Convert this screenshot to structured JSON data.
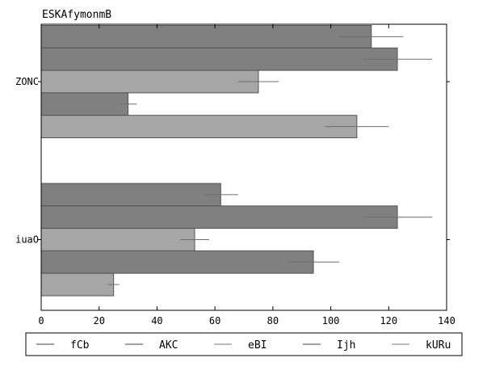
{
  "chart_data": {
    "type": "bar",
    "orientation": "horizontal",
    "title": "ESKAfymonmB",
    "xlabel": "",
    "ylabel": "",
    "xlim": [
      0,
      140
    ],
    "x_ticks": [
      0,
      20,
      40,
      60,
      80,
      100,
      120,
      140
    ],
    "categories": [
      "ZONC",
      "iuaO"
    ],
    "grid": false,
    "legend_position": "bottom",
    "series": [
      {
        "name": "fCb",
        "color": "#808080",
        "values": [
          114,
          62
        ],
        "errors": [
          11,
          6
        ]
      },
      {
        "name": "AKC",
        "color": "#808080",
        "values": [
          123,
          123
        ],
        "errors": [
          12,
          12
        ]
      },
      {
        "name": "eBI",
        "color": "#a6a6a6",
        "values": [
          75,
          53
        ],
        "errors": [
          7,
          5
        ]
      },
      {
        "name": "Ijh",
        "color": "#808080",
        "values": [
          30,
          94
        ],
        "errors": [
          3,
          9
        ]
      },
      {
        "name": "kURu",
        "color": "#a6a6a6",
        "values": [
          109,
          25
        ],
        "errors": [
          11,
          2
        ]
      }
    ]
  }
}
